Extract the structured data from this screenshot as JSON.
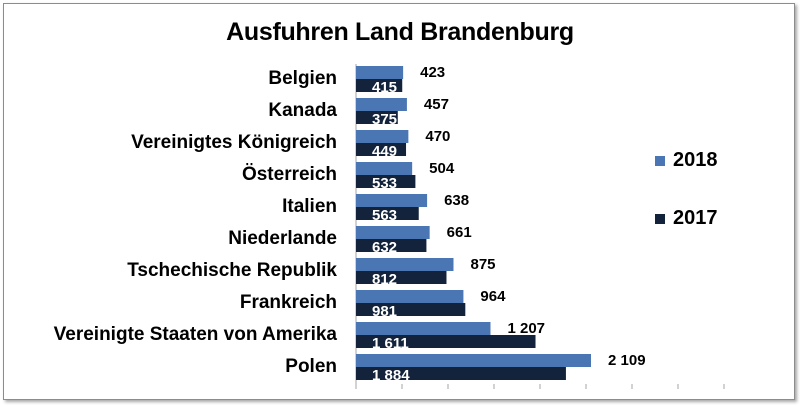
{
  "chart_data": {
    "type": "bar",
    "orientation": "horizontal",
    "title": "Ausfuhren Land Brandenburg",
    "categories": [
      "Belgien",
      "Kanada",
      "Vereinigtes Königreich",
      "Österreich",
      "Italien",
      "Niederlande",
      "Tschechische Republik",
      "Frankreich",
      "Vereinigte Staaten von Amerika",
      "Polen"
    ],
    "series": [
      {
        "name": "2018",
        "color": "#4a77b4",
        "values": [
          423,
          457,
          470,
          504,
          638,
          661,
          875,
          964,
          1207,
          2109
        ],
        "labels": [
          "423",
          "457",
          "470",
          "504",
          "638",
          "661",
          "875",
          "964",
          "1 207",
          "2 109"
        ]
      },
      {
        "name": "2017",
        "color": "#13233b",
        "values": [
          415,
          375,
          449,
          533,
          563,
          632,
          812,
          981,
          1611,
          1884
        ],
        "labels": [
          "415",
          "375",
          "449",
          "533",
          "563",
          "632",
          "812",
          "981",
          "1 611",
          "1 884"
        ]
      }
    ],
    "legend_position": "right",
    "grid": false,
    "xlim": [
      0,
      2200
    ]
  }
}
